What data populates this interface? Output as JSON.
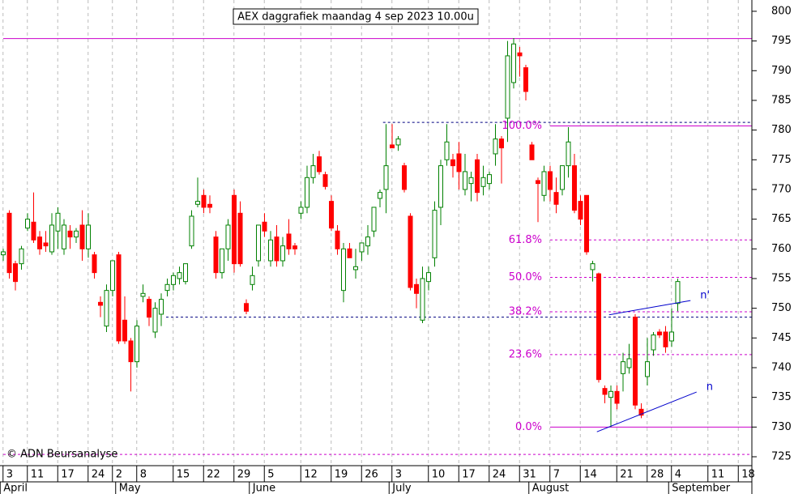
{
  "chart_data": {
    "type": "candlestick",
    "title": "AEX daggrafiek maandag 4 sep 2023 10.00u",
    "copyright": "© ADN Beursanalyse",
    "categories": [
      null,
      "3",
      null,
      null,
      null,
      "11",
      null,
      null,
      null,
      null,
      "17",
      null,
      null,
      null,
      null,
      "24",
      null,
      null,
      null,
      "2",
      null,
      null,
      null,
      "8",
      null,
      null,
      null,
      null,
      null,
      "15",
      null,
      null,
      null,
      null,
      "22",
      null,
      null,
      null,
      null,
      "29",
      null,
      null,
      null,
      null,
      "5",
      null,
      null,
      null,
      null,
      null,
      "12",
      null,
      null,
      null,
      null,
      "19",
      null,
      null,
      null,
      null,
      "26",
      null,
      null,
      null,
      null,
      "3",
      null,
      null,
      null,
      null,
      null,
      "10",
      null,
      null,
      null,
      null,
      "17",
      null,
      null,
      null,
      null,
      "24",
      null,
      null,
      null,
      null,
      "31",
      null,
      null,
      null,
      null,
      "7",
      null,
      null,
      null,
      null,
      "14",
      null,
      null,
      null,
      null,
      null,
      "21",
      null,
      null,
      null,
      null,
      "28",
      null,
      null,
      null,
      "4",
      null,
      null,
      null,
      null,
      null,
      "11",
      null,
      null,
      null,
      null,
      "18"
    ],
    "months": [
      {
        "label": "April",
        "value": 0
      },
      {
        "label": "May",
        "value": 19
      },
      {
        "label": "June",
        "value": 41
      },
      {
        "label": "July",
        "value": 64
      },
      {
        "label": "August",
        "value": 87
      },
      {
        "label": "September",
        "value": 110
      }
    ],
    "open": [
      759,
      766,
      757.5,
      757.5,
      763.5,
      764.5,
      762,
      761,
      759.5,
      763,
      760,
      763,
      762,
      764,
      760,
      759,
      751,
      747,
      753,
      759,
      748,
      744.5,
      741,
      752,
      751.5,
      746,
      749,
      753,
      754,
      755,
      754.5,
      760.5,
      767.5,
      769,
      767.5,
      762,
      756,
      760,
      769,
      766,
      750.8,
      754,
      758,
      764.5,
      758,
      762,
      758,
      762.5,
      760.5,
      766,
      767,
      772,
      775.5,
      772.5,
      768,
      763,
      753,
      760,
      756.5,
      759.5,
      760.5,
      763,
      768.5,
      770,
      777.5,
      777.5,
      774,
      765.5,
      754,
      748,
      754.5,
      758.5,
      767,
      775,
      775,
      776,
      770,
      771,
      775,
      770.5,
      771,
      776,
      778.5,
      782,
      788,
      793,
      790.5,
      777.5,
      771.5,
      769,
      773,
      769.5,
      770,
      774,
      774,
      768,
      769,
      756.5,
      755.8,
      736.5,
      735,
      736,
      739,
      740,
      748.5,
      733,
      738.5,
      743,
      746,
      746,
      744.5,
      750.8,
      null,
      null,
      null,
      null,
      null,
      null,
      null,
      null,
      null,
      null,
      null
    ],
    "high": [
      760,
      766.5,
      758,
      760.5,
      766,
      769.5,
      763,
      763,
      766,
      767,
      765,
      764,
      763.5,
      766.5,
      766,
      759.5,
      752,
      754,
      758,
      759.5,
      752,
      745,
      748,
      754,
      752,
      751,
      752.5,
      755,
      756,
      757,
      757.5,
      766.5,
      772,
      770,
      769,
      763,
      760,
      765,
      770,
      768,
      751.5,
      757,
      764,
      766,
      763,
      764,
      762,
      765,
      761,
      768,
      774,
      776,
      776.5,
      773,
      769,
      764,
      761,
      761,
      760,
      761,
      764,
      767,
      770,
      781,
      781,
      779,
      774.5,
      766,
      755,
      757,
      757,
      768,
      775,
      781,
      776,
      778,
      776,
      773,
      776,
      774,
      773,
      781,
      779,
      795,
      795.5,
      794,
      791,
      778,
      772,
      774,
      774,
      772,
      774,
      780.5,
      776,
      769,
      769,
      758,
      756,
      737,
      737,
      737,
      742.5,
      744,
      749,
      734,
      745,
      746,
      746.5,
      747,
      750,
      755,
      null,
      null,
      null,
      null,
      null,
      null,
      null,
      null,
      null,
      null,
      null
    ],
    "low": [
      758,
      755,
      753,
      756.5,
      763,
      761,
      759,
      759.5,
      759,
      760,
      759,
      760,
      761,
      758,
      758.5,
      755,
      748.5,
      746,
      752,
      744,
      744,
      736,
      740,
      751,
      747,
      745,
      747,
      752,
      753,
      754,
      754,
      760,
      767,
      766,
      766,
      755,
      755,
      758,
      756,
      757,
      749,
      753,
      757,
      762,
      757,
      757,
      757,
      759,
      759,
      765,
      766,
      771,
      772.5,
      770,
      763,
      759,
      751,
      758.5,
      755,
      758,
      759,
      762,
      767,
      766,
      777,
      776.5,
      769.5,
      753,
      750,
      747.5,
      753,
      757,
      764,
      774,
      772,
      770,
      769,
      768,
      768,
      769,
      770,
      774,
      771,
      778,
      787,
      789,
      785,
      775,
      764.5,
      768,
      768,
      766,
      769,
      772,
      766,
      764,
      759,
      754.5,
      737.5,
      734,
      730,
      733,
      736,
      739,
      733,
      731.5,
      737,
      742,
      745,
      742.5,
      743.5,
      749.5,
      null,
      null,
      null,
      null,
      null,
      null,
      null,
      null,
      null,
      null,
      null
    ],
    "close": [
      759.5,
      756,
      754.5,
      760,
      765,
      761.5,
      760,
      760.5,
      764,
      766,
      764,
      762,
      763,
      760,
      764,
      756,
      750.5,
      753,
      758,
      744.5,
      744.5,
      741,
      747,
      752.5,
      748.5,
      750,
      751.5,
      754,
      755.5,
      756,
      757.5,
      765.5,
      768,
      767,
      767,
      756,
      760,
      764,
      757.5,
      757.5,
      749.5,
      755.5,
      764,
      763,
      761.5,
      758,
      760.5,
      760,
      760,
      767,
      772,
      774,
      773,
      770.5,
      763.5,
      760,
      760,
      758.5,
      757,
      761,
      762,
      767,
      769.5,
      774,
      777,
      778.5,
      770,
      753.5,
      752.5,
      755,
      756,
      766.5,
      774,
      778,
      774,
      773,
      773,
      772,
      769.5,
      772,
      772.5,
      778.5,
      777,
      792.5,
      794.5,
      792.5,
      786.5,
      775,
      771,
      773,
      770,
      767.5,
      774,
      778,
      766.5,
      765,
      759.5,
      757.5,
      738,
      735.5,
      736,
      734,
      741,
      741.5,
      733.7,
      732,
      741,
      745.5,
      745.5,
      743.5,
      746,
      754.5,
      null,
      null,
      null,
      null,
      null,
      null,
      null,
      null,
      null,
      null,
      null
    ],
    "up_color": "#008000",
    "down_color": "#ff0000",
    "ylim": [
      723.5,
      801.9
    ],
    "yticks": [
      725,
      730,
      735,
      740,
      745,
      750,
      755,
      760,
      765,
      770,
      775,
      780,
      785,
      790,
      795,
      800
    ],
    "hlines": [
      {
        "value": 795.4,
        "color": "#cc00cc",
        "dashed": false,
        "from": 0
      },
      {
        "value": 781.3,
        "color": "#000080",
        "dashed": true,
        "from": 62.5
      },
      {
        "value": 748.5,
        "color": "#000080",
        "dashed": true,
        "from": 26.8
      },
      {
        "value": 725.4,
        "color": "#cc00cc",
        "dashed": true,
        "from": 0
      }
    ],
    "fib_levels": [
      {
        "label": "100.0%",
        "value": 780.7,
        "dashed": false
      },
      {
        "label": "61.8%",
        "value": 761.5,
        "dashed": true
      },
      {
        "label": "50.0%",
        "value": 755.2,
        "dashed": true
      },
      {
        "label": "38.2%",
        "value": 749.4,
        "dashed": true
      },
      {
        "label": "23.6%",
        "value": 742.2,
        "dashed": true
      },
      {
        "label": "0.0%",
        "value": 730.0,
        "dashed": false
      }
    ],
    "fib_color": "#cc00cc",
    "fib_from": 90,
    "trend_lines": [
      {
        "label": "n",
        "x": [
          97.7,
          114.1
        ],
        "y": [
          729.2,
          735.9
        ]
      },
      {
        "label": "n'",
        "x": [
          99.7,
          113.1
        ],
        "y": [
          748.9,
          751.3
        ]
      }
    ],
    "trend_color": "#0000cc"
  }
}
